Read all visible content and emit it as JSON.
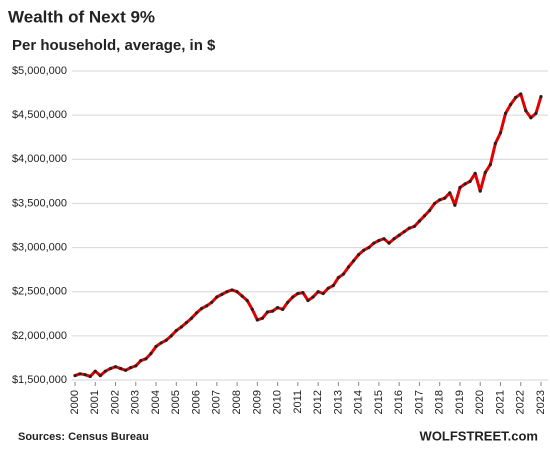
{
  "chart_data": {
    "type": "line",
    "title": "Wealth of Next 9%",
    "subtitle": "Per household, average, in $",
    "source": "Sources: Census Bureau",
    "brand": "WOLFSTREET.com",
    "x": [
      2000,
      2000.25,
      2000.5,
      2000.75,
      2001,
      2001.25,
      2001.5,
      2001.75,
      2002,
      2002.25,
      2002.5,
      2002.75,
      2003,
      2003.25,
      2003.5,
      2003.75,
      2004,
      2004.25,
      2004.5,
      2004.75,
      2005,
      2005.25,
      2005.5,
      2005.75,
      2006,
      2006.25,
      2006.5,
      2006.75,
      2007,
      2007.25,
      2007.5,
      2007.75,
      2008,
      2008.25,
      2008.5,
      2008.75,
      2009,
      2009.25,
      2009.5,
      2009.75,
      2010,
      2010.25,
      2010.5,
      2010.75,
      2011,
      2011.25,
      2011.5,
      2011.75,
      2012,
      2012.25,
      2012.5,
      2012.75,
      2013,
      2013.25,
      2013.5,
      2013.75,
      2014,
      2014.25,
      2014.5,
      2014.75,
      2015,
      2015.25,
      2015.5,
      2015.75,
      2016,
      2016.25,
      2016.5,
      2016.75,
      2017,
      2017.25,
      2017.5,
      2017.75,
      2018,
      2018.25,
      2018.5,
      2018.75,
      2019,
      2019.25,
      2019.5,
      2019.75,
      2020,
      2020.25,
      2020.5,
      2020.75,
      2021,
      2021.25,
      2021.5,
      2021.75,
      2022,
      2022.25,
      2022.5,
      2022.75,
      2023
    ],
    "series": [
      {
        "name": "Wealth of Next 9%",
        "color": "#e00000",
        "marker_color": "#222222",
        "values": [
          1550000,
          1570000,
          1560000,
          1540000,
          1600000,
          1550000,
          1600000,
          1630000,
          1650000,
          1630000,
          1610000,
          1640000,
          1660000,
          1720000,
          1740000,
          1800000,
          1880000,
          1920000,
          1950000,
          2000000,
          2060000,
          2100000,
          2150000,
          2200000,
          2260000,
          2310000,
          2340000,
          2380000,
          2440000,
          2470000,
          2500000,
          2520000,
          2500000,
          2450000,
          2400000,
          2300000,
          2180000,
          2200000,
          2270000,
          2280000,
          2320000,
          2300000,
          2380000,
          2440000,
          2480000,
          2490000,
          2400000,
          2440000,
          2500000,
          2480000,
          2540000,
          2570000,
          2660000,
          2700000,
          2780000,
          2850000,
          2920000,
          2970000,
          3000000,
          3050000,
          3080000,
          3100000,
          3050000,
          3100000,
          3140000,
          3180000,
          3220000,
          3240000,
          3300000,
          3360000,
          3420000,
          3500000,
          3540000,
          3560000,
          3620000,
          3480000,
          3680000,
          3720000,
          3750000,
          3840000,
          3640000,
          3850000,
          3940000,
          4180000,
          4300000,
          4520000,
          4620000,
          4700000,
          4740000,
          4550000,
          4470000,
          4520000,
          4710000
        ]
      }
    ],
    "xlim": [
      2000,
      2023
    ],
    "xticks": [
      2000,
      2001,
      2002,
      2003,
      2004,
      2005,
      2006,
      2007,
      2008,
      2009,
      2010,
      2011,
      2012,
      2013,
      2014,
      2015,
      2016,
      2017,
      2018,
      2019,
      2020,
      2021,
      2022,
      2023
    ],
    "ylim": [
      1500000,
      5000000
    ],
    "yticks": [
      {
        "value": 1500000,
        "label": "$1,500,000"
      },
      {
        "value": 2000000,
        "label": "$2,000,000"
      },
      {
        "value": 2500000,
        "label": "$2,500,000"
      },
      {
        "value": 3000000,
        "label": "$3,000,000"
      },
      {
        "value": 3500000,
        "label": "$3,500,000"
      },
      {
        "value": 4000000,
        "label": "$4,000,000"
      },
      {
        "value": 4500000,
        "label": "$4,500,000"
      },
      {
        "value": 5000000,
        "label": "$5,000,000"
      }
    ],
    "grid": true
  }
}
